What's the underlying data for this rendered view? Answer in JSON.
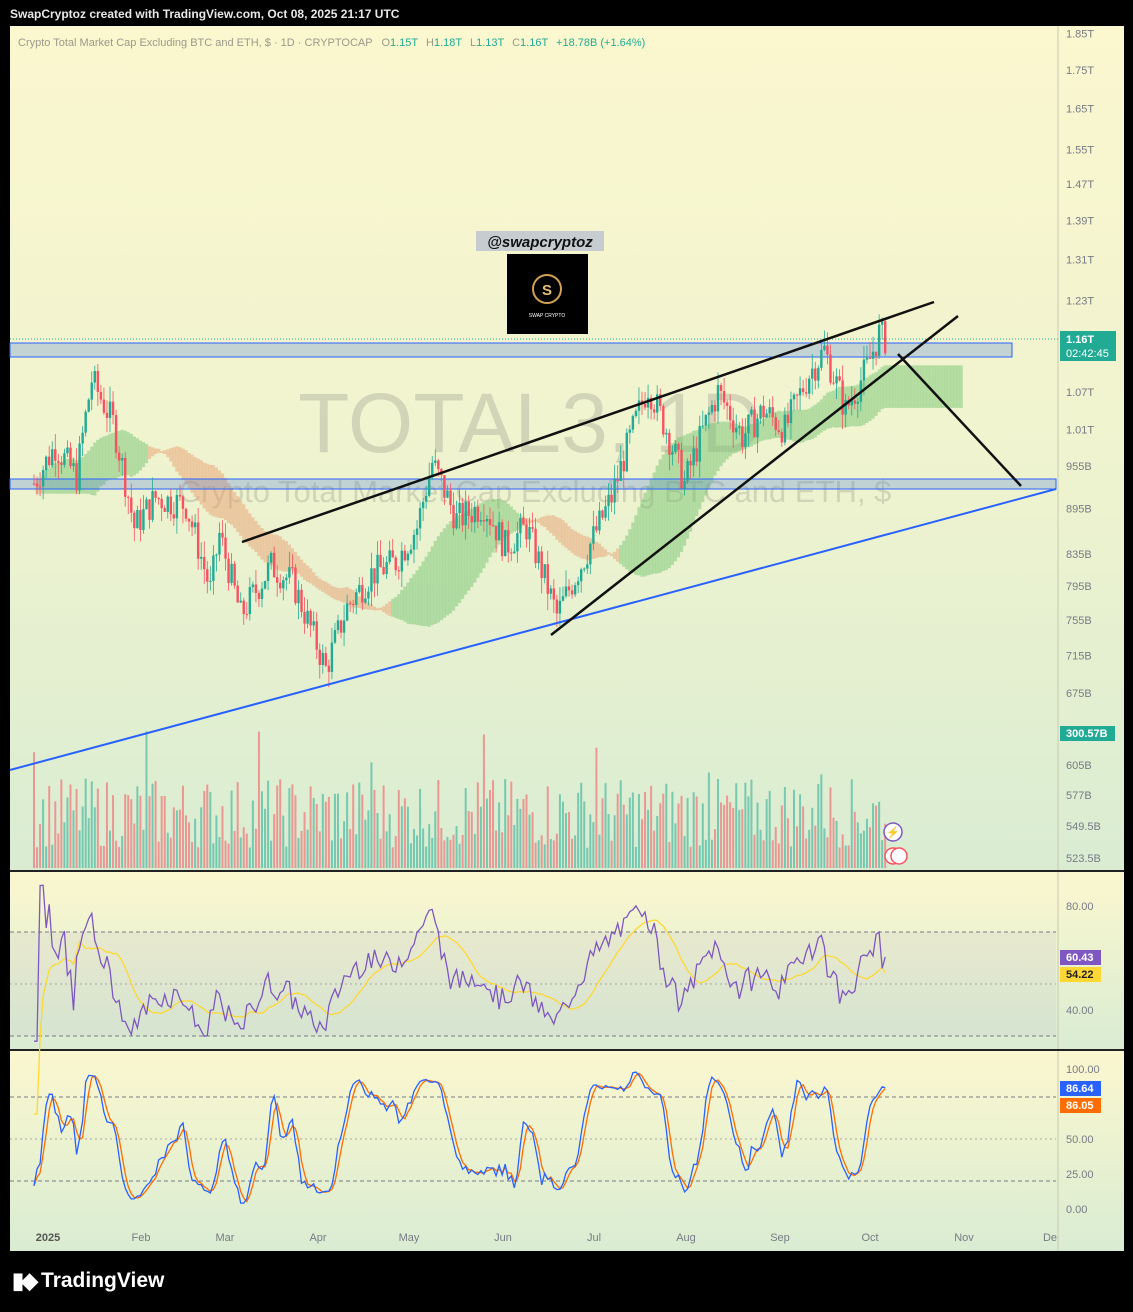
{
  "header": {
    "attribution": "SwapCryptoz created with TradingView.com, Oct 08, 2025 21:17 UTC"
  },
  "footer": {
    "logo_text": "TradingView",
    "logo_icon": "tradingview-logo-icon"
  },
  "colors": {
    "up": "#22ab94",
    "down": "#f7525f",
    "accent_line": "#2962ff",
    "rsi": "#7e57c2",
    "rsi_ma": "#fdd835",
    "stoch_k": "#2962ff",
    "stoch_d": "#ff6d00"
  },
  "main": {
    "legend": {
      "title": "Crypto Total Market Cap Excluding BTC and ETH, $ · 1D · CRYPTOCAP",
      "o_label": "O",
      "o": "1.15T",
      "h_label": "H",
      "h": "1.18T",
      "l_label": "L",
      "l": "1.13T",
      "c_label": "C",
      "c": "1.16T",
      "change": "+18.78B (+1.64%)"
    },
    "watermark_symbol": "TOTAL3, 1D",
    "watermark_name": "Crypto Total Market Cap Excluding BTC and ETH, $",
    "price_label": "1.16T",
    "countdown": "02:42:45",
    "volume_label": "300.57B",
    "author_tag": "@swapcryptoz",
    "logo_letter": "S",
    "logo_text": "SWAP CRYPTO"
  },
  "indicators": {
    "rsi_value": "60.43",
    "rsi_ma_value": "54.22",
    "stoch_k_value": "86.64",
    "stoch_d_value": "86.05"
  },
  "chart_data": {
    "type": "candlestick",
    "title": "Crypto Total Market Cap Excluding BTC and ETH, $",
    "price_axis_ticks": [
      "1.85T",
      "1.75T",
      "1.65T",
      "1.55T",
      "1.47T",
      "1.39T",
      "1.31T",
      "1.23T",
      "1.07T",
      "1.01T",
      "955B",
      "895B",
      "835B",
      "795B",
      "755B",
      "715B",
      "675B"
    ],
    "volume_axis_ticks": [
      "605B",
      "577B",
      "549.5B",
      "523.5B"
    ],
    "rsi_axis_ticks": [
      "80.00",
      "40.00"
    ],
    "stoch_axis_ticks": [
      "100.00",
      "50.00",
      "25.00",
      "0.00"
    ],
    "time_axis_ticks": [
      "2025",
      "Feb",
      "Mar",
      "Apr",
      "May",
      "Jun",
      "Jul",
      "Aug",
      "Sep",
      "Oct",
      "Nov",
      "De"
    ],
    "price_path": [
      {
        "date": "2025-01-01",
        "close": 930
      },
      {
        "date": "2025-01-08",
        "close": 985
      },
      {
        "date": "2025-01-15",
        "close": 940
      },
      {
        "date": "2025-01-20",
        "close": 1090
      },
      {
        "date": "2025-01-27",
        "close": 1020
      },
      {
        "date": "2025-02-03",
        "close": 870
      },
      {
        "date": "2025-02-10",
        "close": 910
      },
      {
        "date": "2025-02-20",
        "close": 900
      },
      {
        "date": "2025-02-28",
        "close": 790
      },
      {
        "date": "2025-03-03",
        "close": 860
      },
      {
        "date": "2025-03-10",
        "close": 760
      },
      {
        "date": "2025-03-20",
        "close": 820
      },
      {
        "date": "2025-03-27",
        "close": 800
      },
      {
        "date": "2025-04-07",
        "close": 700
      },
      {
        "date": "2025-04-14",
        "close": 770
      },
      {
        "date": "2025-04-22",
        "close": 810
      },
      {
        "date": "2025-04-30",
        "close": 825
      },
      {
        "date": "2025-05-07",
        "close": 870
      },
      {
        "date": "2025-05-12",
        "close": 960
      },
      {
        "date": "2025-05-20",
        "close": 880
      },
      {
        "date": "2025-05-29",
        "close": 900
      },
      {
        "date": "2025-06-05",
        "close": 845
      },
      {
        "date": "2025-06-12",
        "close": 870
      },
      {
        "date": "2025-06-22",
        "close": 760
      },
      {
        "date": "2025-07-01",
        "close": 830
      },
      {
        "date": "2025-07-10",
        "close": 910
      },
      {
        "date": "2025-07-17",
        "close": 1010
      },
      {
        "date": "2025-07-22",
        "close": 1080
      },
      {
        "date": "2025-07-28",
        "close": 1010
      },
      {
        "date": "2025-08-03",
        "close": 930
      },
      {
        "date": "2025-08-10",
        "close": 1020
      },
      {
        "date": "2025-08-14",
        "close": 1070
      },
      {
        "date": "2025-08-22",
        "close": 1000
      },
      {
        "date": "2025-08-29",
        "close": 1040
      },
      {
        "date": "2025-09-05",
        "close": 1010
      },
      {
        "date": "2025-09-13",
        "close": 1100
      },
      {
        "date": "2025-09-18",
        "close": 1140
      },
      {
        "date": "2025-09-25",
        "close": 1040
      },
      {
        "date": "2025-10-02",
        "close": 1110
      },
      {
        "date": "2025-10-06",
        "close": 1170
      },
      {
        "date": "2025-10-08",
        "close": 1160
      }
    ],
    "support_zones_price": [
      [
        1115,
        1145
      ],
      [
        930,
        955
      ]
    ],
    "rsi_last": 60.43,
    "rsi_ma_last": 54.22,
    "stoch_k_last": 86.64,
    "stoch_d_last": 86.05
  }
}
